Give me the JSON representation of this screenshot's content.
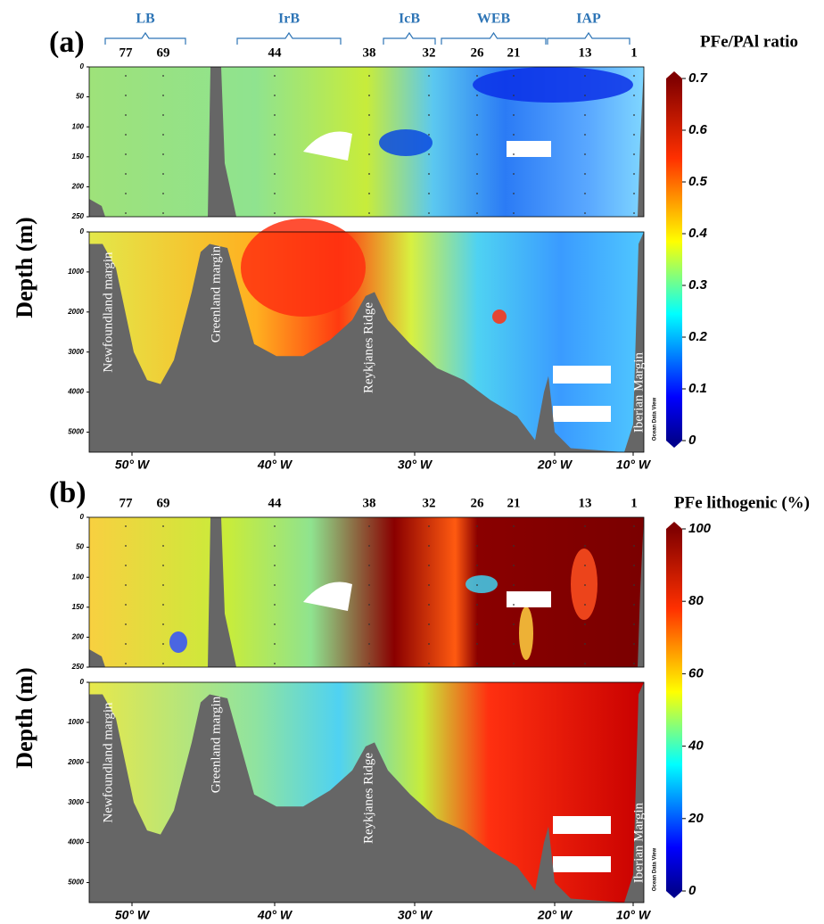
{
  "panels": [
    {
      "label": "(a)",
      "ylabel": "Depth (m)",
      "colorbar": {
        "title": "PFe/PAl ratio",
        "lim": [
          0,
          0.7
        ],
        "ticks": [
          0,
          0.1,
          0.2,
          0.3,
          0.4,
          0.5,
          0.6,
          0.7
        ]
      },
      "basins": [
        "LB",
        "IrB",
        "IcB",
        "WEB",
        "IAP"
      ],
      "stations": [
        "77",
        "69",
        "44",
        "38",
        "32",
        "26",
        "21",
        "13",
        "1"
      ],
      "upper_lim": [
        0,
        250
      ],
      "upper_ticks": [
        0,
        50,
        100,
        150,
        200,
        250
      ],
      "lower_lim": [
        0,
        5500
      ],
      "lower_ticks": [
        0,
        1000,
        2000,
        3000,
        4000,
        5000
      ],
      "lon_ticks": [
        "50° W",
        "40° W",
        "30° W",
        "20° W",
        "10° W"
      ],
      "features": [
        "Newfoundland margin",
        "Greenland margin",
        "Reykjanes Ridge",
        "Iberian Margin"
      ],
      "watermark": "Ocean Data View"
    },
    {
      "label": "(b)",
      "ylabel": "Depth (m)",
      "colorbar": {
        "title": "PFe lithogenic (%)",
        "lim": [
          0,
          100
        ],
        "ticks": [
          0,
          20,
          40,
          60,
          80,
          100
        ]
      },
      "stations": [
        "77",
        "69",
        "44",
        "38",
        "32",
        "26",
        "21",
        "13",
        "1"
      ],
      "upper_lim": [
        0,
        250
      ],
      "upper_ticks": [
        0,
        50,
        100,
        150,
        200,
        250
      ],
      "lower_lim": [
        0,
        5500
      ],
      "lower_ticks": [
        0,
        1000,
        2000,
        3000,
        4000,
        5000
      ],
      "lon_ticks": [
        "50° W",
        "40° W",
        "30° W",
        "20° W",
        "10° W"
      ],
      "features": [
        "Newfoundland margin",
        "Greenland margin",
        "Reykjanes Ridge",
        "Iberian Margin"
      ],
      "watermark": "Ocean Data View"
    }
  ]
}
